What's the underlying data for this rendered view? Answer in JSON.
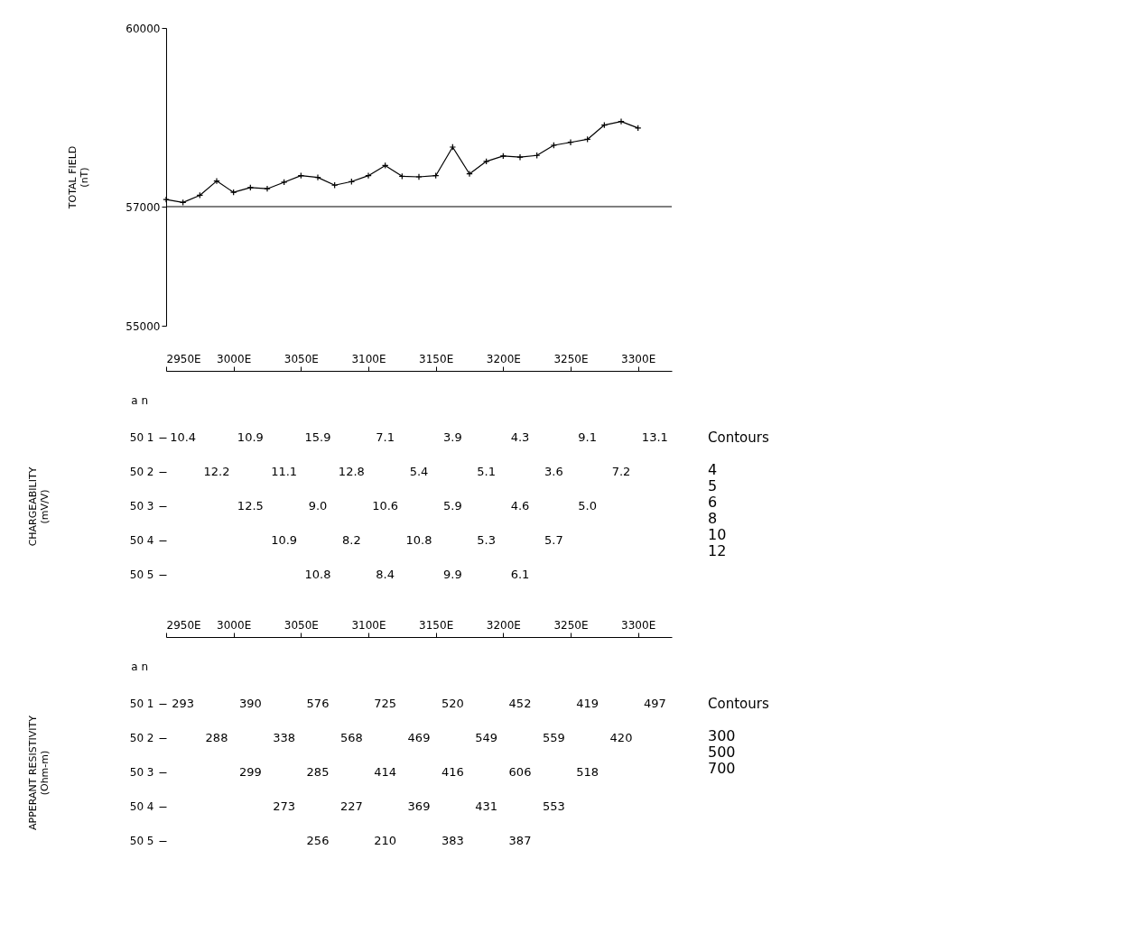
{
  "chart_data": [
    {
      "type": "line",
      "ylabel": "TOTAL FIELD\n(nT)",
      "x": [
        2950,
        2962.5,
        2975,
        2987.5,
        3000,
        3012.5,
        3025,
        3037.5,
        3050,
        3062.5,
        3075,
        3087.5,
        3100,
        3112.5,
        3125,
        3137.5,
        3150,
        3162.5,
        3175,
        3187.5,
        3200,
        3212.5,
        3225,
        3237.5,
        3250,
        3262.5,
        3275,
        3287.5,
        3300
      ],
      "series": [
        {
          "color": "#000000",
          "values": [
            57120,
            57070,
            57190,
            57430,
            57240,
            57320,
            57300,
            57410,
            57520,
            57490,
            57360,
            57420,
            57520,
            57690,
            57510,
            57500,
            57520,
            58000,
            57550,
            57760,
            57850,
            57830,
            57860,
            58030,
            58080,
            58130,
            58370,
            58430,
            58320
          ]
        }
      ],
      "xlim": [
        2950,
        3325
      ],
      "ylim": [
        55000,
        60000
      ],
      "yticks": [
        55000,
        57000,
        60000
      ],
      "tick_labels": "y",
      "marker": "cross",
      "ref_lines": [
        {
          "axis": "y",
          "value": 57000,
          "color": "#000000"
        }
      ]
    },
    {
      "type": "heatmap",
      "ylabel": "CHARGEABILITY\n(mV/V)",
      "data_labels": true,
      "x": [
        2962.5,
        2987.5,
        3012.5,
        3037.5,
        3062.5,
        3087.5,
        3112.5,
        3137.5,
        3162.5,
        3187.5,
        3212.5,
        3237.5,
        3262.5,
        3287.5,
        3312.5
      ],
      "xlim": [
        2950,
        3325
      ],
      "xticks": [
        {
          "value": 2950,
          "label": "2950E"
        },
        {
          "value": 3000,
          "label": "3000E"
        },
        {
          "value": 3050,
          "label": "3050E"
        },
        {
          "value": 3100,
          "label": "3100E"
        },
        {
          "value": 3150,
          "label": "3150E"
        },
        {
          "value": 3200,
          "label": "3200E"
        },
        {
          "value": 3250,
          "label": "3250E"
        },
        {
          "value": 3300,
          "label": "3300E"
        }
      ],
      "y_categories": [
        "50      1",
        "50      2",
        "50      3",
        "50      4",
        "50      5"
      ],
      "cells": [
        [
          10.4,
          null,
          10.9,
          null,
          15.9,
          null,
          7.1,
          null,
          3.9,
          null,
          4.3,
          null,
          9.1,
          null,
          13.1
        ],
        [
          null,
          12.2,
          null,
          11.1,
          null,
          12.8,
          null,
          5.4,
          null,
          5.1,
          null,
          3.6,
          null,
          7.2,
          null
        ],
        [
          null,
          null,
          12.5,
          null,
          9.0,
          null,
          10.6,
          null,
          5.9,
          null,
          4.6,
          null,
          5.0,
          null,
          null
        ],
        [
          null,
          null,
          null,
          10.9,
          null,
          8.2,
          null,
          10.8,
          null,
          5.3,
          null,
          5.7,
          null,
          null,
          null
        ],
        [
          null,
          null,
          null,
          null,
          10.8,
          null,
          8.4,
          null,
          9.9,
          null,
          6.1,
          null,
          null,
          null,
          null
        ]
      ],
      "cell_labels": [
        [
          "10.4",
          null,
          "10.9",
          null,
          "15.9",
          null,
          "7.1",
          null,
          "3.9",
          null,
          "4.3",
          null,
          "9.1",
          null,
          "13.1"
        ],
        [
          null,
          "12.2",
          null,
          "11.1",
          null,
          "12.8",
          null,
          "5.4",
          null,
          "5.1",
          null,
          "3.6",
          null,
          "7.2",
          null
        ],
        [
          null,
          null,
          "12.5",
          null,
          "9.0",
          null,
          "10.6",
          null,
          "5.9",
          null,
          "4.6",
          null,
          "5.0",
          null,
          null
        ],
        [
          null,
          null,
          null,
          "10.9",
          null,
          "8.2",
          null,
          "10.8",
          null,
          "5.3",
          null,
          "5.7",
          null,
          null,
          null
        ],
        [
          null,
          null,
          null,
          null,
          "10.8",
          null,
          "8.4",
          null,
          "9.9",
          null,
          "6.1",
          null,
          null,
          null,
          null
        ]
      ],
      "annotations": [
        "a       n",
        "Contours",
        "4",
        "5",
        "6",
        "8",
        "10",
        "12"
      ]
    },
    {
      "type": "heatmap",
      "ylabel": "APPERANT RESISTIVITY\n(Ohm-m)",
      "data_labels": true,
      "x": [
        2962.5,
        2987.5,
        3012.5,
        3037.5,
        3062.5,
        3087.5,
        3112.5,
        3137.5,
        3162.5,
        3187.5,
        3212.5,
        3237.5,
        3262.5,
        3287.5,
        3312.5
      ],
      "xlim": [
        2950,
        3325
      ],
      "xticks": [
        {
          "value": 2950,
          "label": "2950E"
        },
        {
          "value": 3000,
          "label": "3000E"
        },
        {
          "value": 3050,
          "label": "3050E"
        },
        {
          "value": 3100,
          "label": "3100E"
        },
        {
          "value": 3150,
          "label": "3150E"
        },
        {
          "value": 3200,
          "label": "3200E"
        },
        {
          "value": 3250,
          "label": "3250E"
        },
        {
          "value": 3300,
          "label": "3300E"
        }
      ],
      "y_categories": [
        "50      1",
        "50      2",
        "50      3",
        "50      4",
        "50      5"
      ],
      "cells": [
        [
          293,
          null,
          390,
          null,
          576,
          null,
          725,
          null,
          520,
          null,
          452,
          null,
          419,
          null,
          497
        ],
        [
          null,
          288,
          null,
          338,
          null,
          568,
          null,
          469,
          null,
          549,
          null,
          559,
          null,
          420,
          null
        ],
        [
          null,
          null,
          299,
          null,
          285,
          null,
          414,
          null,
          416,
          null,
          606,
          null,
          518,
          null,
          null
        ],
        [
          null,
          null,
          null,
          273,
          null,
          227,
          null,
          369,
          null,
          431,
          null,
          553,
          null,
          null,
          null
        ],
        [
          null,
          null,
          null,
          null,
          256,
          null,
          210,
          null,
          383,
          null,
          387,
          null,
          null,
          null,
          null
        ]
      ],
      "annotations": [
        "a       n",
        "Contours",
        "300",
        "500",
        "700"
      ]
    }
  ]
}
